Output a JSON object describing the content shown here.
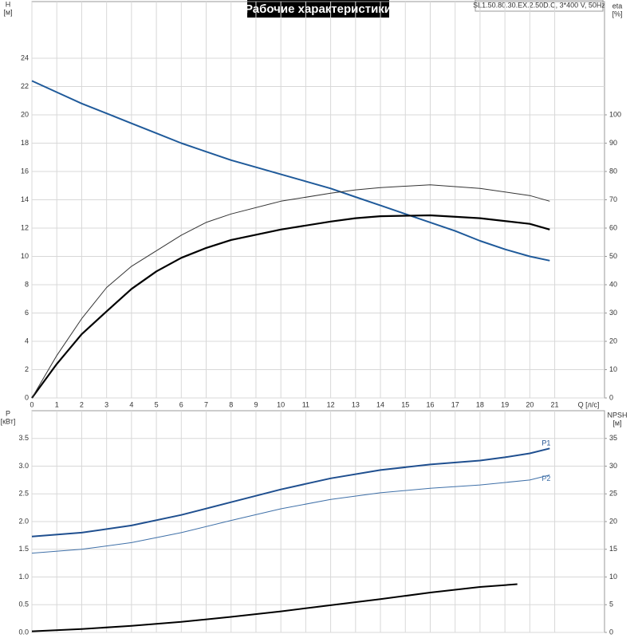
{
  "chart_data": [
    {
      "type": "line",
      "title": "Рабочие характеристики",
      "subtitle": "SL1.50.80.30.EX.2.50D.C, 3*400 V, 50Hz",
      "xlabel": "Q [л/с]",
      "ylabel": [
        "H",
        "[м]"
      ],
      "y2label": [
        "eta",
        "[%]"
      ],
      "xlim": [
        0,
        23
      ],
      "xticks": [
        0,
        1,
        2,
        3,
        4,
        5,
        6,
        7,
        8,
        9,
        10,
        11,
        12,
        13,
        14,
        15,
        16,
        17,
        18,
        19,
        20,
        21
      ],
      "show_xtick_labels": true,
      "ylim": [
        0,
        28
      ],
      "yticks": [
        0,
        2,
        4,
        6,
        8,
        10,
        12,
        14,
        16,
        18,
        20,
        22,
        24
      ],
      "y2lim": [
        0,
        140
      ],
      "y2ticks": [
        0,
        10,
        20,
        30,
        40,
        50,
        60,
        70,
        80,
        90,
        100
      ],
      "grid": true,
      "series": [
        {
          "color": "#1f5a9a",
          "width": 2,
          "x": [
            0,
            1,
            2,
            3,
            4,
            5,
            6,
            7,
            8,
            9,
            10,
            11,
            12,
            13,
            14,
            15,
            16,
            17,
            18,
            19,
            20,
            20.8
          ],
          "values": [
            22.4,
            21.6,
            20.8,
            20.1,
            19.4,
            18.7,
            18.0,
            17.4,
            16.8,
            16.3,
            15.8,
            15.3,
            14.8,
            14.2,
            13.6,
            13.0,
            12.4,
            11.8,
            11.1,
            10.5,
            10.0,
            9.7
          ]
        },
        {
          "color": "#000000",
          "width": 2.2,
          "axis": "y2",
          "x": [
            0,
            1,
            2,
            3,
            4,
            5,
            6,
            7,
            8,
            10,
            12,
            13,
            14,
            16,
            18,
            20,
            20.8
          ],
          "values": [
            0,
            12,
            22.5,
            30.6,
            38.5,
            44.7,
            49.5,
            53,
            55.8,
            59.5,
            62.3,
            63.5,
            64.2,
            64.5,
            63.5,
            61.5,
            59.5
          ]
        },
        {
          "color": "#333333",
          "width": 1,
          "axis": "y2",
          "x": [
            0,
            1,
            2,
            3,
            4,
            5,
            6,
            7,
            8,
            10,
            12,
            13,
            14,
            16,
            18,
            20,
            20.8
          ],
          "values": [
            0,
            15,
            28,
            39,
            46.5,
            52,
            57.5,
            62,
            65,
            69.5,
            72.3,
            73.5,
            74.3,
            75.3,
            74,
            71.5,
            69.5
          ]
        }
      ]
    },
    {
      "type": "line",
      "ylabel": [
        "P",
        "[кВт]"
      ],
      "y2label": [
        "NPSH",
        "[м]"
      ],
      "xlim": [
        0,
        23
      ],
      "xticks": [
        0,
        1,
        2,
        3,
        4,
        5,
        6,
        7,
        8,
        9,
        10,
        11,
        12,
        13,
        14,
        15,
        16,
        17,
        18,
        19,
        20,
        21
      ],
      "show_xtick_labels": false,
      "ylim": [
        0,
        4
      ],
      "yticks": [
        {
          "value": 0,
          "label": "0.0"
        },
        0.5,
        {
          "value": 1,
          "label": "1.0"
        },
        1.5,
        {
          "value": 2,
          "label": "2.0"
        },
        2.5,
        {
          "value": 3,
          "label": "3.0"
        },
        3.5
      ],
      "y2lim": [
        0,
        40
      ],
      "y2ticks": [
        0,
        5,
        10,
        15,
        20,
        25,
        30,
        35
      ],
      "grid": true,
      "series": [
        {
          "name": "P1",
          "color": "#1f4f8f",
          "width": 2,
          "x": [
            0,
            2,
            4,
            6,
            8,
            10,
            12,
            14,
            16,
            18,
            19,
            20,
            20.8
          ],
          "values": [
            1.73,
            1.8,
            1.93,
            2.12,
            2.35,
            2.58,
            2.78,
            2.93,
            3.03,
            3.1,
            3.16,
            3.23,
            3.32
          ]
        },
        {
          "name": "P2",
          "color": "#3f70a8",
          "width": 1,
          "x": [
            0,
            2,
            4,
            6,
            8,
            10,
            12,
            14,
            16,
            18,
            20,
            20.8
          ],
          "values": [
            1.43,
            1.5,
            1.62,
            1.8,
            2.02,
            2.23,
            2.4,
            2.52,
            2.6,
            2.66,
            2.75,
            2.84
          ]
        },
        {
          "color": "#000000",
          "width": 2,
          "axis": "y2",
          "x": [
            0,
            2,
            4,
            6,
            8,
            10,
            12,
            14,
            16,
            18,
            19.5
          ],
          "values": [
            0.2,
            0.6,
            1.2,
            1.9,
            2.8,
            3.8,
            4.9,
            6.0,
            7.2,
            8.2,
            8.7
          ]
        }
      ]
    }
  ]
}
